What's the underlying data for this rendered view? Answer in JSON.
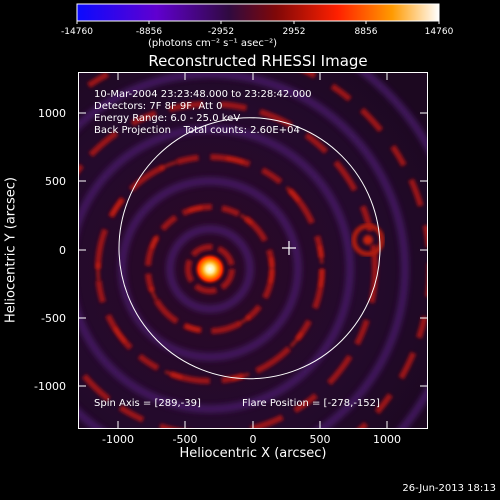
{
  "colorbar": {
    "tick_labels": [
      "-14760",
      "-8856",
      "-2952",
      "2952",
      "8856",
      "14760"
    ],
    "unit_label": "(photons cm⁻² s⁻¹ asec⁻²)",
    "min": -14760,
    "max": 14760,
    "colors": [
      "#0a0aff",
      "#5a00c8",
      "#3a0a38",
      "#8a0a0a",
      "#ff2400",
      "#ff9000",
      "#ffffff"
    ]
  },
  "plot": {
    "title": "Reconstructed RHESSI Image",
    "xlabel": "Heliocentric X (arcsec)",
    "ylabel": "Heliocentric Y (arcsec)",
    "xlim": [
      -1300,
      1300
    ],
    "ylim": [
      -1300,
      1300
    ],
    "x_ticks": [
      "-1000",
      "-500",
      "0",
      "500",
      "1000"
    ],
    "y_ticks": [
      "1000",
      "500",
      "0",
      "-500",
      "-1000"
    ],
    "x_tick_values": [
      -1000,
      -500,
      0,
      500,
      1000
    ],
    "y_tick_values": [
      1000,
      500,
      0,
      -500,
      -1000
    ]
  },
  "info": {
    "time_range": "10-Mar-2004 23:23:48.000 to 23:28:42.000",
    "detectors": "Detectors: 7F 8F 9F, Att 0",
    "energy": "Energy Range: 6.0 - 25.0 keV",
    "method_counts": "Back Projection    Total counts: 2.60E+04",
    "spin_axis": "Spin Axis = [289,-39]",
    "flare_position": "Flare Position = [-278,-152]"
  },
  "solar_disk_radius_arcsec": 970,
  "spin_axis_xy": [
    289,
    -39
  ],
  "flare_xy": [
    -278,
    -152
  ],
  "footer_date": "26-Jun-2013 18:13"
}
